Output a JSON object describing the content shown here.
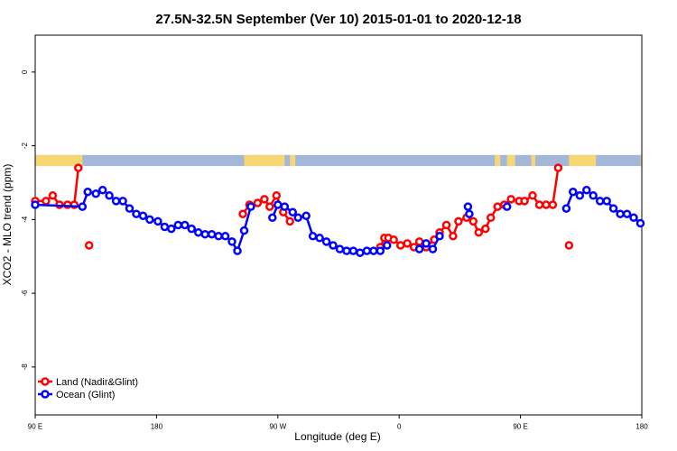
{
  "chart_data": {
    "type": "line",
    "title": "27.5N-32.5N September (Ver 10)   2015-01-01 to 2020-12-18",
    "xlabel": "Longitude (deg E)",
    "ylabel": "XCO2 - MLO trend (ppm)",
    "xlim": [
      90,
      540
    ],
    "ylim": [
      -9.3,
      1.0
    ],
    "x_ticks": [
      {
        "value": 90,
        "label": "90 E"
      },
      {
        "value": 180,
        "label": "180"
      },
      {
        "value": 270,
        "label": "90 W"
      },
      {
        "value": 360,
        "label": "0"
      },
      {
        "value": 450,
        "label": "90 E"
      },
      {
        "value": 540,
        "label": "180"
      }
    ],
    "y_ticks": [
      {
        "value": 0,
        "label": "0"
      },
      {
        "value": -2,
        "label": "-2"
      },
      {
        "value": -4,
        "label": "-4"
      },
      {
        "value": -6,
        "label": "-6"
      },
      {
        "value": -8,
        "label": "-8"
      }
    ],
    "grid": false,
    "legend_position": "bottom-left",
    "land_ocean_strip": {
      "y_range": [
        -2.55,
        -2.25
      ],
      "ocean_color": "#a3b8d8",
      "land_color": "#f7d774",
      "land_segments": [
        [
          90,
          125
        ],
        [
          245,
          275
        ],
        [
          279,
          283
        ],
        [
          431,
          435
        ],
        [
          440,
          446
        ],
        [
          458,
          461
        ],
        [
          486,
          506
        ],
        [
          539,
          540
        ]
      ]
    },
    "series": [
      {
        "name": "Land (Nadir&Glint)",
        "color": "#ff0000",
        "points": [
          [
            90,
            -3.5
          ],
          [
            98,
            -3.5
          ],
          [
            103,
            -3.35
          ],
          [
            108,
            -3.6
          ],
          [
            114,
            -3.6
          ],
          [
            119,
            -3.6
          ],
          [
            122,
            -2.6
          ],
          [
            130,
            -4.7
          ],
          [
            244,
            -3.85
          ],
          [
            249,
            -3.6
          ],
          [
            255,
            -3.55
          ],
          [
            260,
            -3.45
          ],
          [
            264,
            -3.65
          ],
          [
            269,
            -3.35
          ],
          [
            274,
            -3.8
          ],
          [
            279,
            -4.05
          ],
          [
            346,
            -4.75
          ],
          [
            349,
            -4.5
          ],
          [
            352,
            -4.5
          ],
          [
            356,
            -4.55
          ],
          [
            361,
            -4.7
          ],
          [
            366,
            -4.65
          ],
          [
            371,
            -4.75
          ],
          [
            375,
            -4.6
          ],
          [
            380,
            -4.75
          ],
          [
            386,
            -4.55
          ],
          [
            390,
            -4.35
          ],
          [
            395,
            -4.15
          ],
          [
            400,
            -4.45
          ],
          [
            404,
            -4.05
          ],
          [
            410,
            -3.95
          ],
          [
            415,
            -4.05
          ],
          [
            419,
            -4.35
          ],
          [
            424,
            -4.25
          ],
          [
            428,
            -3.95
          ],
          [
            433,
            -3.65
          ],
          [
            438,
            -3.6
          ],
          [
            443,
            -3.45
          ],
          [
            449,
            -3.5
          ],
          [
            453,
            -3.5
          ],
          [
            459,
            -3.35
          ],
          [
            464,
            -3.6
          ],
          [
            469,
            -3.6
          ],
          [
            474,
            -3.6
          ],
          [
            478,
            -2.6
          ],
          [
            486,
            -4.7
          ]
        ],
        "breaks_before": [
          7,
          8,
          16,
          45
        ]
      },
      {
        "name": "Ocean (Glint)",
        "color": "#0000ff",
        "points": [
          [
            90,
            -3.6
          ],
          [
            125,
            -3.65
          ],
          [
            129,
            -3.25
          ],
          [
            135,
            -3.3
          ],
          [
            140,
            -3.2
          ],
          [
            145,
            -3.35
          ],
          [
            150,
            -3.5
          ],
          [
            155,
            -3.5
          ],
          [
            160,
            -3.7
          ],
          [
            165,
            -3.85
          ],
          [
            170,
            -3.9
          ],
          [
            175,
            -4.0
          ],
          [
            181,
            -4.05
          ],
          [
            186,
            -4.2
          ],
          [
            191,
            -4.25
          ],
          [
            196,
            -4.15
          ],
          [
            201,
            -4.15
          ],
          [
            206,
            -4.25
          ],
          [
            211,
            -4.35
          ],
          [
            216,
            -4.4
          ],
          [
            221,
            -4.4
          ],
          [
            226,
            -4.45
          ],
          [
            231,
            -4.45
          ],
          [
            236,
            -4.6
          ],
          [
            240,
            -4.85
          ],
          [
            245,
            -4.3
          ],
          [
            250,
            -3.65
          ],
          [
            266,
            -3.95
          ],
          [
            270,
            -3.6
          ],
          [
            275,
            -3.65
          ],
          [
            281,
            -3.8
          ],
          [
            285,
            -3.95
          ],
          [
            291,
            -3.9
          ],
          [
            296,
            -4.45
          ],
          [
            301,
            -4.5
          ],
          [
            306,
            -4.6
          ],
          [
            311,
            -4.7
          ],
          [
            316,
            -4.8
          ],
          [
            321,
            -4.85
          ],
          [
            326,
            -4.85
          ],
          [
            331,
            -4.9
          ],
          [
            336,
            -4.85
          ],
          [
            341,
            -4.85
          ],
          [
            346,
            -4.85
          ],
          [
            351,
            -4.7
          ],
          [
            375,
            -4.8
          ],
          [
            380,
            -4.65
          ],
          [
            385,
            -4.8
          ],
          [
            390,
            -4.45
          ],
          [
            411,
            -3.65
          ],
          [
            412,
            -3.85
          ],
          [
            440,
            -3.65
          ],
          [
            484,
            -3.7
          ],
          [
            489,
            -3.25
          ],
          [
            494,
            -3.35
          ],
          [
            499,
            -3.2
          ],
          [
            504,
            -3.35
          ],
          [
            509,
            -3.5
          ],
          [
            514,
            -3.5
          ],
          [
            519,
            -3.7
          ],
          [
            524,
            -3.85
          ],
          [
            529,
            -3.85
          ],
          [
            534,
            -3.95
          ],
          [
            539,
            -4.1
          ]
        ],
        "breaks_before": [
          27,
          45,
          49,
          50,
          51,
          52
        ]
      }
    ]
  }
}
